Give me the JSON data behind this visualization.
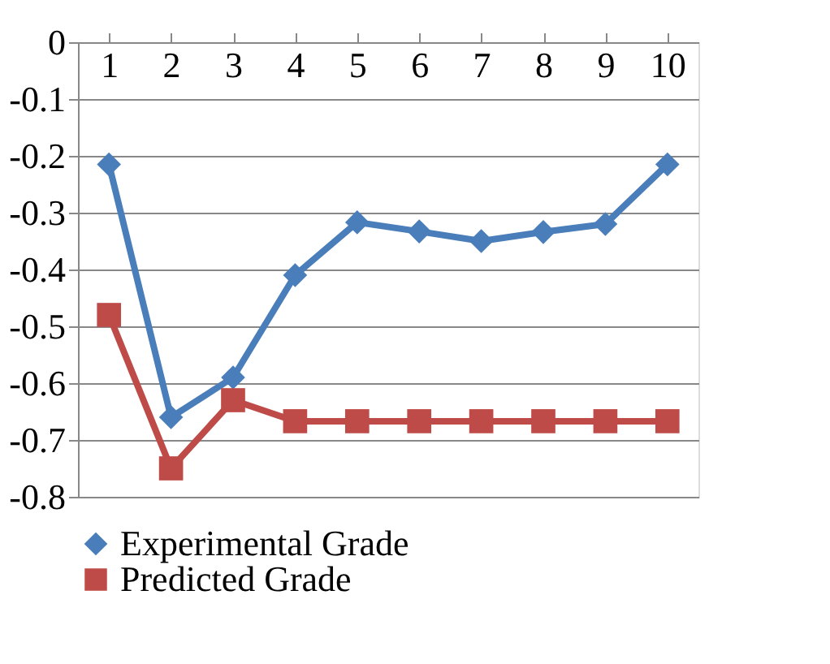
{
  "chart_data": {
    "type": "line",
    "categories": [
      "1",
      "2",
      "3",
      "4",
      "5",
      "6",
      "7",
      "8",
      "9",
      "10"
    ],
    "series": [
      {
        "name": "Experimental Grade",
        "color": "#4a7ebb",
        "marker": "diamond",
        "values": [
          -0.215,
          -0.66,
          -0.59,
          -0.41,
          -0.317,
          -0.333,
          -0.35,
          -0.334,
          -0.32,
          -0.215
        ]
      },
      {
        "name": "Predicted Grade",
        "color": "#be4b48",
        "marker": "square",
        "values": [
          -0.48,
          -0.75,
          -0.63,
          -0.667,
          -0.667,
          -0.667,
          -0.667,
          -0.667,
          -0.667,
          -0.667
        ]
      }
    ],
    "ylim": [
      -0.8,
      0
    ],
    "yticks": [
      -0.8,
      -0.7,
      -0.6,
      -0.5,
      -0.4,
      -0.3,
      -0.2,
      -0.1,
      0
    ],
    "grid": "y",
    "legend": "bottom"
  }
}
